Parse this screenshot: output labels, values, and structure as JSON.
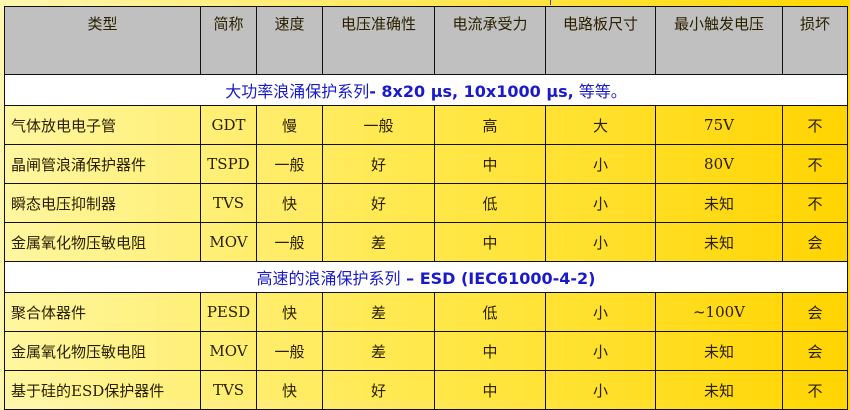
{
  "headers": [
    "类型",
    "简称",
    "速度",
    "电压准确性",
    "电流承受力",
    "电路板尺寸",
    "最小触发电压",
    "损坏"
  ],
  "sections": [
    {
      "title_cn": "大功率浪涌保护系列",
      "title_en": "- 8x20 μs, 10x1000 μs,",
      "title_tail": " 等等。",
      "rows": [
        [
          "气体放电电子管",
          "GDT",
          "慢",
          "一般",
          "高",
          "大",
          "75V",
          "不"
        ],
        [
          "晶闸管浪涌保护器件",
          "TSPD",
          "一般",
          "好",
          "中",
          "小",
          "80V",
          "不"
        ],
        [
          "瞬态电压抑制器",
          "TVS",
          "快",
          "好",
          "低",
          "小",
          "未知",
          "不"
        ],
        [
          "金属氧化物压敏电阻",
          "MOV",
          "一般",
          "差",
          "中",
          "小",
          "未知",
          "会"
        ]
      ]
    },
    {
      "title_cn": "高速的浪涌保护系列",
      "title_en": " – ESD (IEC61000-4-2)",
      "title_tail": "",
      "rows": [
        [
          "聚合体器件",
          "PESD",
          "快",
          "差",
          "低",
          "小",
          "~100V",
          "会"
        ],
        [
          "金属氧化物压敏电阻",
          "MOV",
          "一般",
          "差",
          "中",
          "小",
          "未知",
          "会"
        ],
        [
          "基于硅的ESD保护器件",
          "TVS",
          "快",
          "好",
          "中",
          "小",
          "未知",
          "不"
        ]
      ]
    }
  ],
  "colors": {
    "header_bg": "#c0c0c0",
    "section_text": "#1a1acc",
    "row_bg": "#ffe84a"
  }
}
